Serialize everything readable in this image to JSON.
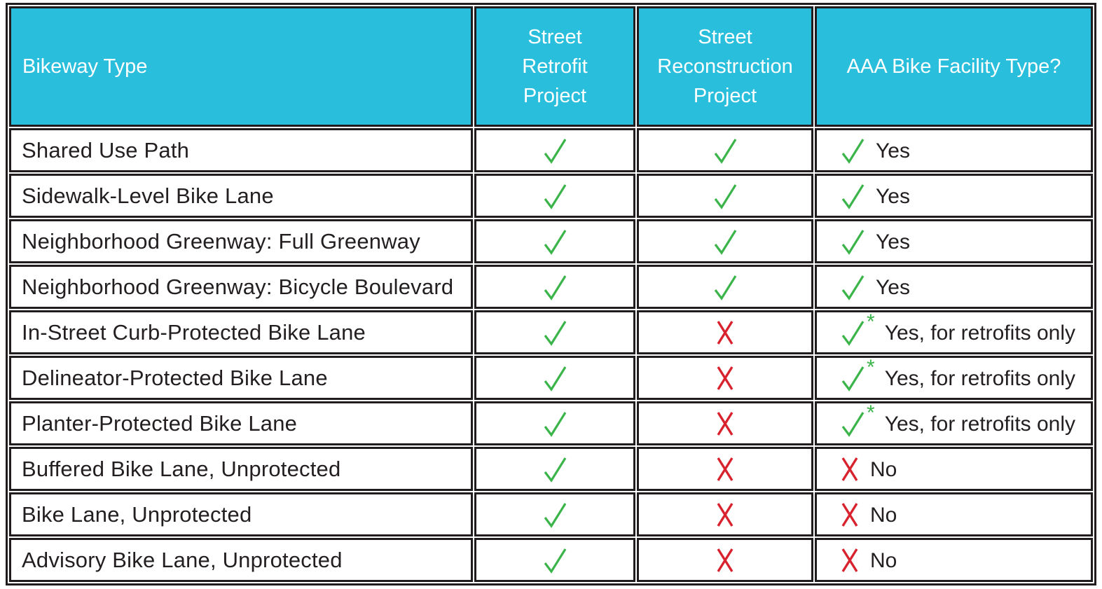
{
  "colors": {
    "header_bg": "#29BEDC",
    "header_text": "#FFFFFF",
    "border": "#211C1D",
    "text": "#231F20",
    "check_green": "#3BB54A",
    "x_red": "#D8232F",
    "background": "#FFFFFF"
  },
  "glyphs": {
    "check": "✓",
    "x": "X",
    "asterisk": "*"
  },
  "header": {
    "bikeway_type": "Bikeway Type",
    "street_retrofit_lines": [
      "Street",
      "Retrofit",
      "Project"
    ],
    "street_reconstruction_lines": [
      "Street",
      "Reconstruction",
      "Project"
    ],
    "aaa_bike_facility": "AAA Bike Facility Type?"
  },
  "rows": [
    {
      "bikeway_type": "Shared Use Path",
      "street_retrofit": "check",
      "street_reconstruction": "check",
      "aaa_marker": "check",
      "aaa_label": "Yes"
    },
    {
      "bikeway_type": "Sidewalk-Level Bike Lane",
      "street_retrofit": "check",
      "street_reconstruction": "check",
      "aaa_marker": "check",
      "aaa_label": "Yes"
    },
    {
      "bikeway_type": "Neighborhood Greenway: Full Greenway",
      "street_retrofit": "check",
      "street_reconstruction": "check",
      "aaa_marker": "check",
      "aaa_label": "Yes"
    },
    {
      "bikeway_type": "Neighborhood Greenway: Bicycle Boulevard",
      "street_retrofit": "check",
      "street_reconstruction": "check",
      "aaa_marker": "check",
      "aaa_label": "Yes"
    },
    {
      "bikeway_type": "In-Street Curb-Protected Bike Lane",
      "street_retrofit": "check",
      "street_reconstruction": "x",
      "aaa_marker": "check-asterisk",
      "aaa_label": "Yes, for retrofits only"
    },
    {
      "bikeway_type": "Delineator-Protected Bike Lane",
      "street_retrofit": "check",
      "street_reconstruction": "x",
      "aaa_marker": "check-asterisk",
      "aaa_label": "Yes, for retrofits only"
    },
    {
      "bikeway_type": "Planter-Protected Bike Lane",
      "street_retrofit": "check",
      "street_reconstruction": "x",
      "aaa_marker": "check-asterisk",
      "aaa_label": "Yes, for retrofits only"
    },
    {
      "bikeway_type": "Buffered Bike Lane, Unprotected",
      "street_retrofit": "check",
      "street_reconstruction": "x",
      "aaa_marker": "x",
      "aaa_label": "No"
    },
    {
      "bikeway_type": "Bike Lane, Unprotected",
      "street_retrofit": "check",
      "street_reconstruction": "x",
      "aaa_marker": "x",
      "aaa_label": "No"
    },
    {
      "bikeway_type": "Advisory Bike Lane, Unprotected",
      "street_retrofit": "check",
      "street_reconstruction": "x",
      "aaa_marker": "x",
      "aaa_label": "No"
    }
  ]
}
